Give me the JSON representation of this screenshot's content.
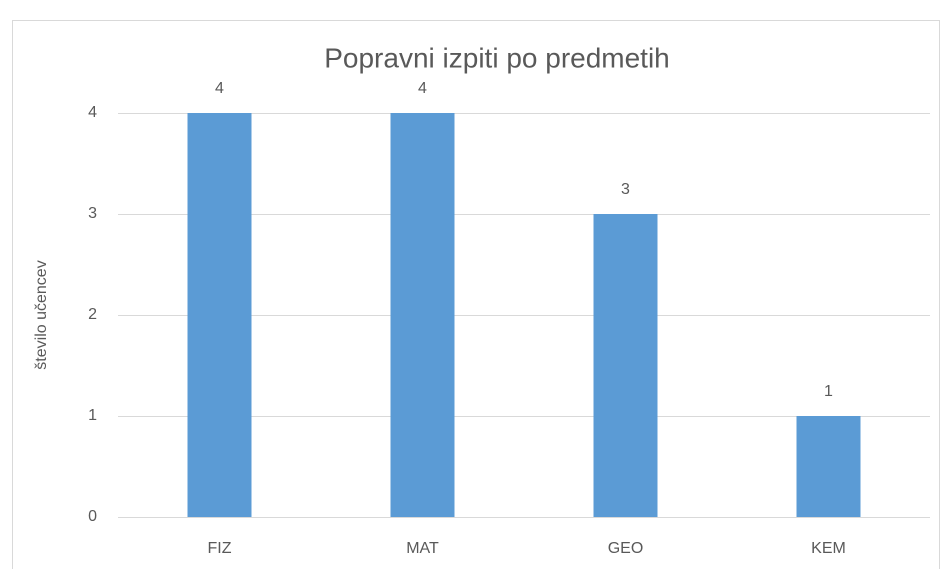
{
  "chart_data": {
    "type": "bar",
    "title": "Popravni izpiti po predmetih",
    "y_label": "število učencev",
    "categories": [
      "FIZ",
      "MAT",
      "GEO",
      "KEM"
    ],
    "values": [
      4,
      4,
      3,
      1
    ],
    "color": "#5b9bd5",
    "ylim": [
      0,
      4
    ],
    "yticks": [
      0,
      1,
      2,
      3,
      4
    ],
    "grid": true,
    "data_labels": true
  }
}
